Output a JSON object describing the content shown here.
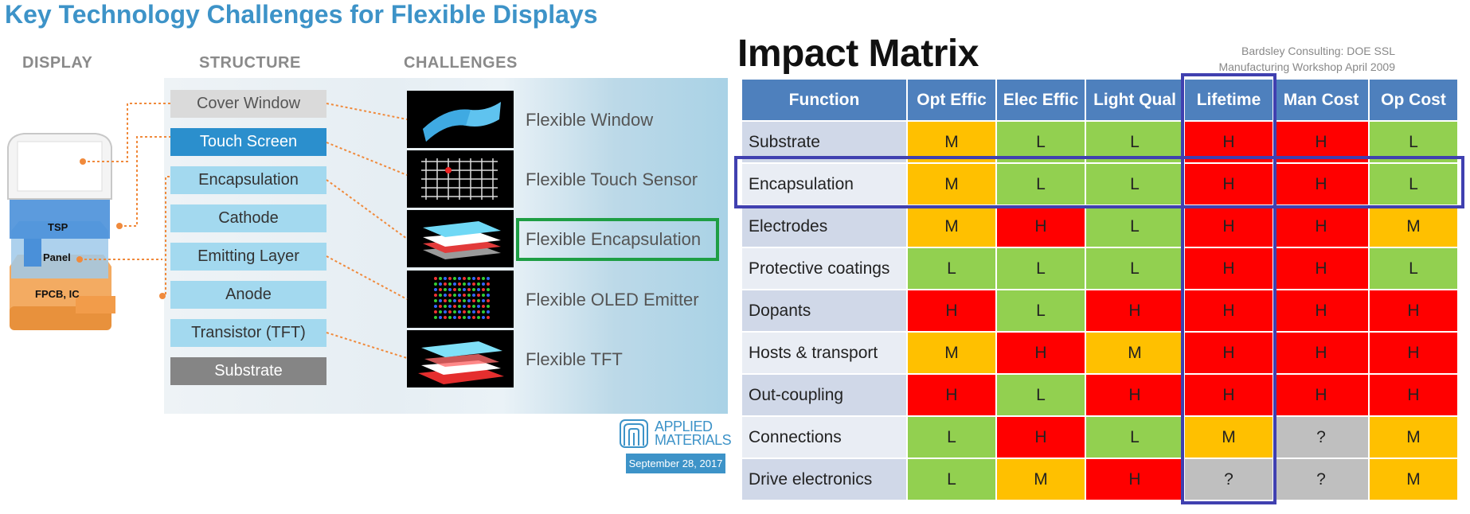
{
  "left_slide": {
    "title": "Key Technology Challenges for Flexible Displays",
    "column_headers": {
      "display": "DISPLAY",
      "structure": "STRUCTURE",
      "challenges": "CHALLENGES"
    },
    "device_labels": [
      "TSP",
      "Panel",
      "FPCB, IC"
    ],
    "structure_layers": [
      {
        "label": "Cover Window",
        "style": "gray"
      },
      {
        "label": "Touch Screen",
        "style": "blue"
      },
      {
        "label": "Encapsulation",
        "style": "light"
      },
      {
        "label": "Cathode",
        "style": "light"
      },
      {
        "label": "Emitting Layer",
        "style": "light"
      },
      {
        "label": "Anode",
        "style": "light"
      },
      {
        "label": "Transistor (TFT)",
        "style": "light"
      },
      {
        "label": "Substrate",
        "style": "dark"
      }
    ],
    "challenges": [
      {
        "label": "Flexible Window",
        "icon": "flexible-window-image"
      },
      {
        "label": "Flexible Touch Sensor",
        "icon": "touch-sensor-grid-image"
      },
      {
        "label": "Flexible Encapsulation",
        "icon": "layer-stack-image",
        "highlighted": true
      },
      {
        "label": "Flexible OLED Emitter",
        "icon": "rgb-dot-matrix-image"
      },
      {
        "label": "Flexible TFT",
        "icon": "tft-layer-stack-image"
      }
    ],
    "logo": {
      "line1": "APPLIED",
      "line2": "MATERIALS"
    },
    "date": "September 28, 2017",
    "highlight_color": "#1e9e44",
    "accent_color": "#3d93c8"
  },
  "right_slide": {
    "title": "Impact Matrix",
    "credit_line1": "Bardsley Consulting: DOE SSL",
    "credit_line2": "Manufacturing Workshop April 2009",
    "columns": [
      "Function",
      "Opt Effic",
      "Elec Effic",
      "Light Qual",
      "Lifetime",
      "Man Cost",
      "Op Cost"
    ],
    "rows": [
      {
        "name": "Substrate",
        "values": [
          "M",
          "L",
          "L",
          "H",
          "H",
          "L"
        ]
      },
      {
        "name": "Encapsulation",
        "values": [
          "M",
          "L",
          "L",
          "H",
          "H",
          "L"
        ]
      },
      {
        "name": "Electrodes",
        "values": [
          "M",
          "H",
          "L",
          "H",
          "H",
          "M"
        ]
      },
      {
        "name": "Protective coatings",
        "values": [
          "L",
          "L",
          "L",
          "H",
          "H",
          "L"
        ]
      },
      {
        "name": "Dopants",
        "values": [
          "H",
          "L",
          "H",
          "H",
          "H",
          "H"
        ]
      },
      {
        "name": "Hosts & transport",
        "values": [
          "M",
          "H",
          "M",
          "H",
          "H",
          "H"
        ]
      },
      {
        "name": "Out-coupling",
        "values": [
          "H",
          "L",
          "H",
          "H",
          "H",
          "H"
        ]
      },
      {
        "name": "Connections",
        "values": [
          "L",
          "H",
          "L",
          "M",
          "?",
          "M"
        ]
      },
      {
        "name": "Drive electronics",
        "values": [
          "L",
          "M",
          "H",
          "?",
          "?",
          "M"
        ]
      }
    ],
    "highlighted_row": "Encapsulation",
    "highlighted_column": "Lifetime",
    "colors": {
      "H": "#ff0000",
      "M": "#ffc000",
      "L": "#92d050",
      "?": "#bfbfbf",
      "header": "#4e80bd",
      "highlight": "#4040b0"
    }
  }
}
